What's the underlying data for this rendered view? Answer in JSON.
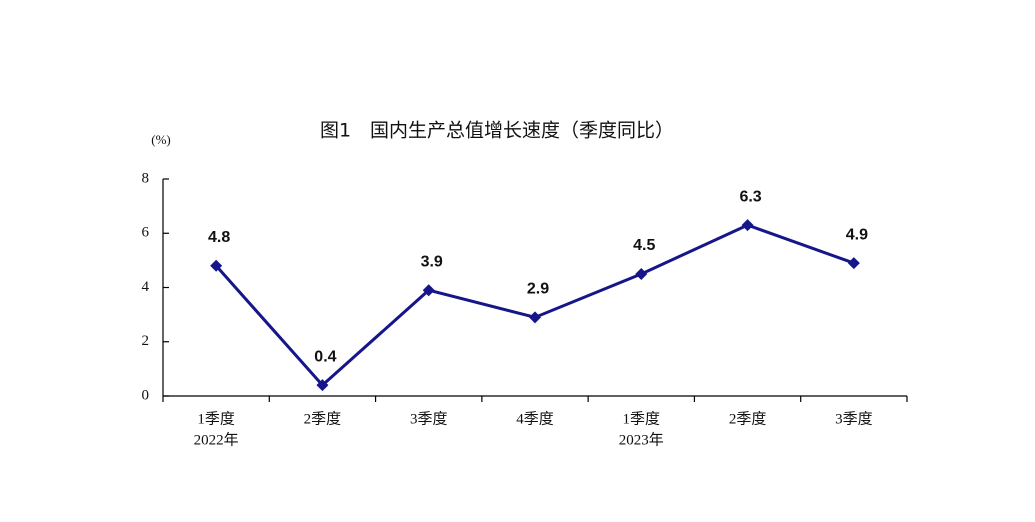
{
  "chart_data": {
    "type": "line",
    "title": "图1　国内生产总值增长速度（季度同比）",
    "y_label": "(%)",
    "categories": [
      "1季度",
      "2季度",
      "3季度",
      "4季度",
      "1季度",
      "2季度",
      "3季度"
    ],
    "year_labels": [
      "2022年",
      null,
      null,
      null,
      "2023年",
      null,
      null
    ],
    "series": [
      {
        "name": "国内生产总值增长速度",
        "color": "#16168a",
        "values": [
          4.8,
          0.4,
          3.9,
          2.9,
          4.5,
          6.3,
          4.9
        ]
      }
    ],
    "ylim": [
      0,
      8
    ],
    "yticks": [
      0,
      2,
      4,
      6,
      8
    ],
    "grid": false,
    "legend": false
  }
}
